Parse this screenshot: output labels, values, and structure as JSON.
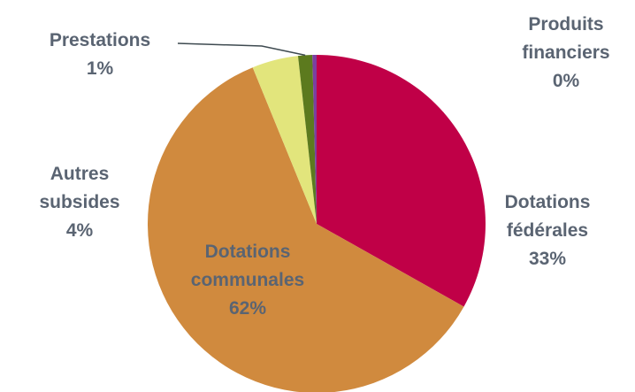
{
  "chart_data": {
    "type": "pie",
    "start_angle_deg": 0,
    "direction": "clockwise",
    "slices": [
      {
        "label": "Dotations fédérales",
        "value": 33,
        "display": "33%",
        "color": "#c00047"
      },
      {
        "label": "Dotations communales",
        "value": 62,
        "display": "62%",
        "color": "#d08a3e"
      },
      {
        "label": "Autres subsides",
        "value": 4,
        "display": "4%",
        "color": "#e2e57c"
      },
      {
        "label": "Prestations",
        "value": 1,
        "display": "1%",
        "color": "#5c7a1e"
      },
      {
        "label": "Produits financiers",
        "value": 0,
        "display": "0%",
        "color": "#7b3fa0"
      }
    ]
  }
}
